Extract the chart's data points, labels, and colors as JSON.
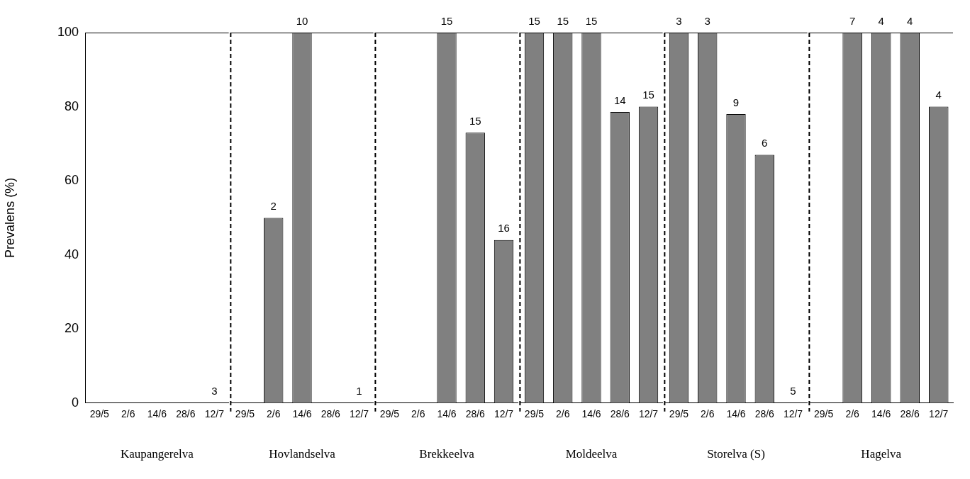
{
  "chart_data": [
    {
      "type": "bar",
      "xlabel": "Kaupangerelva",
      "ylabel": "Prevalens (%)",
      "categories": [
        "29/5",
        "2/6",
        "14/6",
        "28/6",
        "12/7"
      ],
      "values": [
        null,
        null,
        null,
        null,
        0
      ],
      "color": "#808080",
      "ylim": [
        0,
        100
      ],
      "yticks": [
        0,
        20,
        40,
        60,
        80,
        100
      ],
      "grid": false,
      "legend": false,
      "annotations": [
        {
          "text": "3",
          "x": "12/7",
          "y": 0
        }
      ]
    },
    {
      "type": "bar",
      "xlabel": "Hovlandselva",
      "categories": [
        "29/5",
        "2/6",
        "14/6",
        "28/6",
        "12/7"
      ],
      "values": [
        null,
        50,
        100,
        null,
        0
      ],
      "color": "#808080",
      "ylim": [
        0,
        100
      ],
      "yticks": [
        0,
        20,
        40,
        60,
        80,
        100
      ],
      "tick_labels": "x",
      "grid": false,
      "legend": false,
      "annotations": [
        {
          "text": "2",
          "x": "2/6",
          "y": 50
        },
        {
          "text": "10",
          "x": "14/6",
          "y": 100
        },
        {
          "text": "1",
          "x": "12/7",
          "y": 0
        }
      ]
    },
    {
      "type": "bar",
      "xlabel": "Brekkeelva",
      "categories": [
        "29/5",
        "2/6",
        "14/6",
        "28/6",
        "12/7"
      ],
      "values": [
        null,
        null,
        100,
        73,
        44
      ],
      "color": "#808080",
      "ylim": [
        0,
        100
      ],
      "yticks": [
        0,
        20,
        40,
        60,
        80,
        100
      ],
      "tick_labels": "x",
      "grid": false,
      "legend": false,
      "annotations": [
        {
          "text": "15",
          "x": "14/6",
          "y": 100
        },
        {
          "text": "15",
          "x": "28/6",
          "y": 73
        },
        {
          "text": "16",
          "x": "12/7",
          "y": 44
        }
      ]
    },
    {
      "type": "bar",
      "xlabel": "Moldeelva",
      "categories": [
        "29/5",
        "2/6",
        "14/6",
        "28/6",
        "12/7"
      ],
      "values": [
        100,
        100,
        100,
        78.6,
        80
      ],
      "color": "#808080",
      "ylim": [
        0,
        100
      ],
      "yticks": [
        0,
        20,
        40,
        60,
        80,
        100
      ],
      "tick_labels": "x",
      "grid": false,
      "legend": false,
      "annotations": [
        {
          "text": "15",
          "x": "29/5",
          "y": 100
        },
        {
          "text": "15",
          "x": "2/6",
          "y": 100
        },
        {
          "text": "15",
          "x": "14/6",
          "y": 100
        },
        {
          "text": "14",
          "x": "28/6",
          "y": 78.6
        },
        {
          "text": "15",
          "x": "12/7",
          "y": 80
        }
      ]
    },
    {
      "type": "bar",
      "xlabel": "Storelva (S)",
      "categories": [
        "29/5",
        "2/6",
        "14/6",
        "28/6",
        "12/7"
      ],
      "values": [
        100,
        100,
        78,
        67,
        0
      ],
      "color": "#808080",
      "ylim": [
        0,
        100
      ],
      "yticks": [
        0,
        20,
        40,
        60,
        80,
        100
      ],
      "tick_labels": "x",
      "grid": false,
      "legend": false,
      "annotations": [
        {
          "text": "3",
          "x": "29/5",
          "y": 100
        },
        {
          "text": "3",
          "x": "2/6",
          "y": 100
        },
        {
          "text": "9",
          "x": "14/6",
          "y": 78
        },
        {
          "text": "6",
          "x": "28/6",
          "y": 67
        },
        {
          "text": "5",
          "x": "12/7",
          "y": 0
        }
      ]
    },
    {
      "type": "bar",
      "xlabel": "Hagelva",
      "categories": [
        "29/5",
        "2/6",
        "14/6",
        "28/6",
        "12/7"
      ],
      "values": [
        null,
        100,
        100,
        100,
        80
      ],
      "color": "#808080",
      "ylim": [
        0,
        100
      ],
      "yticks": [
        0,
        20,
        40,
        60,
        80,
        100
      ],
      "tick_labels": "x",
      "grid": false,
      "legend": false,
      "annotations": [
        {
          "text": "7",
          "x": "2/6",
          "y": 100
        },
        {
          "text": "4",
          "x": "14/6",
          "y": 100
        },
        {
          "text": "4",
          "x": "28/6",
          "y": 100
        },
        {
          "text": "4",
          "x": "12/7",
          "y": 80
        }
      ]
    }
  ]
}
